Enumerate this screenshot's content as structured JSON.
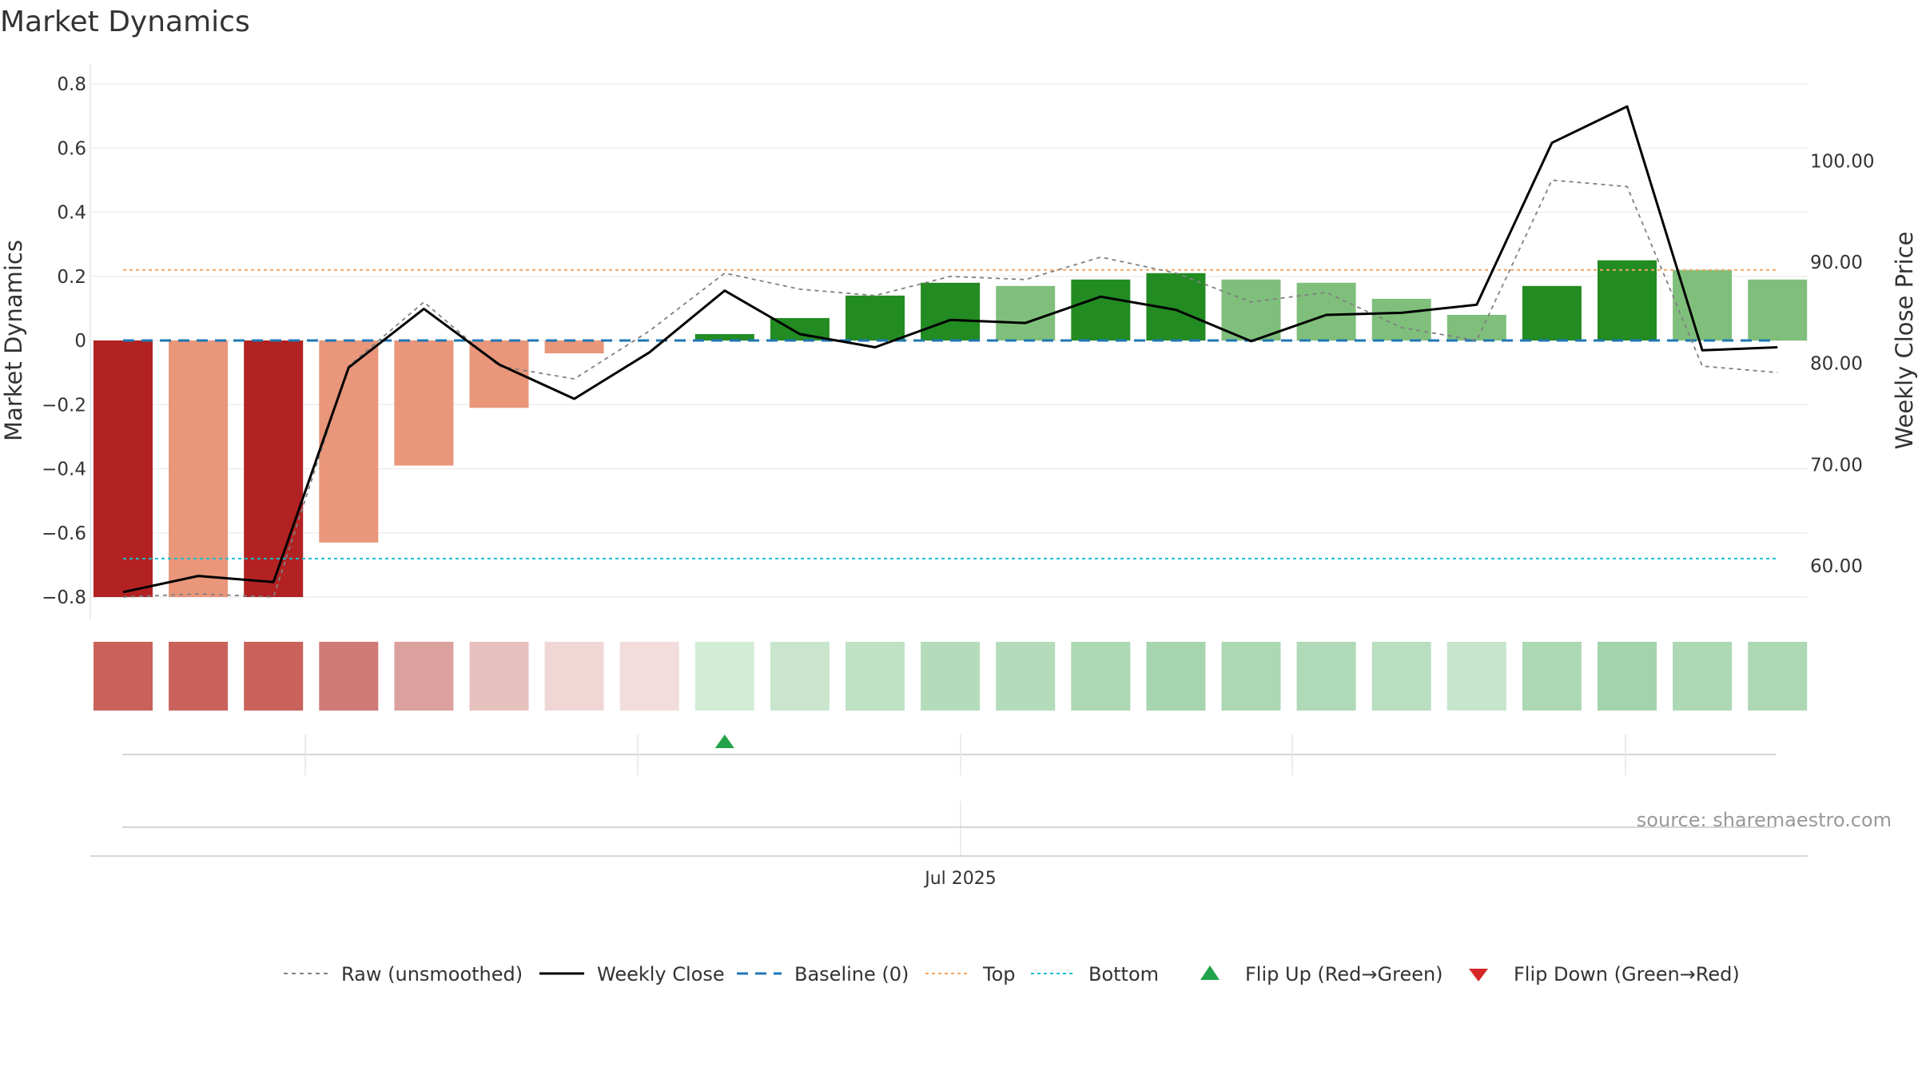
{
  "chart_data": {
    "type": "bar",
    "title": "Market Dynamics",
    "ylabel_left": "Market Dynamics",
    "ylabel_right": "Weekly Close Price",
    "source": "source: sharemaestro.com",
    "x_label_month": "Jul 2025",
    "ylim_left": [
      -0.86,
      0.86
    ],
    "ylim_right": [
      54.7,
      109.6
    ],
    "yticks_left": [
      {
        "value": 0.8,
        "label": "0.8"
      },
      {
        "value": 0.6,
        "label": "0.6"
      },
      {
        "value": 0.4,
        "label": "0.4"
      },
      {
        "value": 0.2,
        "label": "0.2"
      },
      {
        "value": 0,
        "label": "0"
      },
      {
        "value": -0.2,
        "label": "−0.2"
      },
      {
        "value": -0.4,
        "label": "−0.4"
      },
      {
        "value": -0.6,
        "label": "−0.6"
      },
      {
        "value": -0.8,
        "label": "−0.8"
      }
    ],
    "yticks_right": [
      {
        "value": 100,
        "label": "100.00"
      },
      {
        "value": 90,
        "label": "90.00"
      },
      {
        "value": 80,
        "label": "80.00"
      },
      {
        "value": 70,
        "label": "70.00"
      },
      {
        "value": 60,
        "label": "60.00"
      }
    ],
    "weeks": 23,
    "dynamics": [
      -0.8,
      -0.8,
      -0.8,
      -0.63,
      -0.39,
      -0.21,
      -0.04,
      0.0,
      0.02,
      0.07,
      0.14,
      0.18,
      0.17,
      0.19,
      0.21,
      0.19,
      0.18,
      0.13,
      0.08,
      0.17,
      0.25,
      0.22,
      0.19
    ],
    "bar_colors": [
      "#b22222",
      "#e9967a",
      "#b22222",
      "#e9967a",
      "#e9967a",
      "#e9967a",
      "#e9967a",
      "#e9967a",
      "#228b22",
      "#228b22",
      "#228b22",
      "#228b22",
      "#7fbf7b",
      "#228b22",
      "#228b22",
      "#7fbf7b",
      "#7fbf7b",
      "#7fbf7b",
      "#7fbf7b",
      "#228b22",
      "#228b22",
      "#7fbf7b",
      "#7fbf7b"
    ],
    "raw": [
      -0.8,
      -0.79,
      -0.8,
      -0.08,
      0.12,
      -0.08,
      -0.12,
      0.03,
      0.21,
      0.16,
      0.14,
      0.2,
      0.19,
      0.26,
      0.21,
      0.12,
      0.15,
      0.04,
      0.0,
      0.5,
      0.48,
      -0.08,
      -0.1
    ],
    "weekly_close": [
      57.4,
      59.0,
      58.4,
      79.6,
      85.4,
      79.9,
      76.5,
      81.1,
      87.2,
      82.9,
      81.6,
      84.3,
      84.0,
      86.6,
      85.3,
      82.2,
      84.8,
      85.0,
      85.8,
      101.8,
      105.4,
      81.3,
      81.6
    ],
    "baseline": 0,
    "top": 0.22,
    "bottom": -0.68,
    "strip_colors": [
      "#c9625b",
      "#c9625b",
      "#c9625b",
      "#cf7a76",
      "#dca19e",
      "#e7c1be",
      "#f0d7d6",
      "#f2dcdc",
      "#d3ecd5",
      "#c9e6cd",
      "#bfe1c4",
      "#b4dcbb",
      "#b4dcbb",
      "#acd8b4",
      "#a7d5b0",
      "#acd8b4",
      "#afd9b7",
      "#b9dec0",
      "#c6e5cb",
      "#acd8b4",
      "#a3d3ac",
      "#acd8b4",
      "#acd8b4"
    ],
    "flip_up_weeks": [
      8
    ],
    "flip_down_weeks": [],
    "legend": [
      {
        "label": "Raw (unsmoothed)",
        "kind": "line",
        "color": "#808080",
        "dash": "5,5",
        "width": 2
      },
      {
        "label": "Weekly Close",
        "kind": "line",
        "color": "#000000",
        "dash": "",
        "width": 3
      },
      {
        "label": "Baseline (0)",
        "kind": "line",
        "color": "#1f77b4",
        "dash": "14,9",
        "width": 3
      },
      {
        "label": "Top",
        "kind": "line",
        "color": "#f4a460",
        "dash": "4,4",
        "width": 2
      },
      {
        "label": "Bottom",
        "kind": "line",
        "color": "#17becf",
        "dash": "4,4",
        "width": 2
      },
      {
        "label": "Flip Up (Red→Green)",
        "kind": "tri-up",
        "color": "#22a34a"
      },
      {
        "label": "Flip Down (Green→Red)",
        "kind": "tri-down",
        "color": "#d62728"
      }
    ]
  }
}
